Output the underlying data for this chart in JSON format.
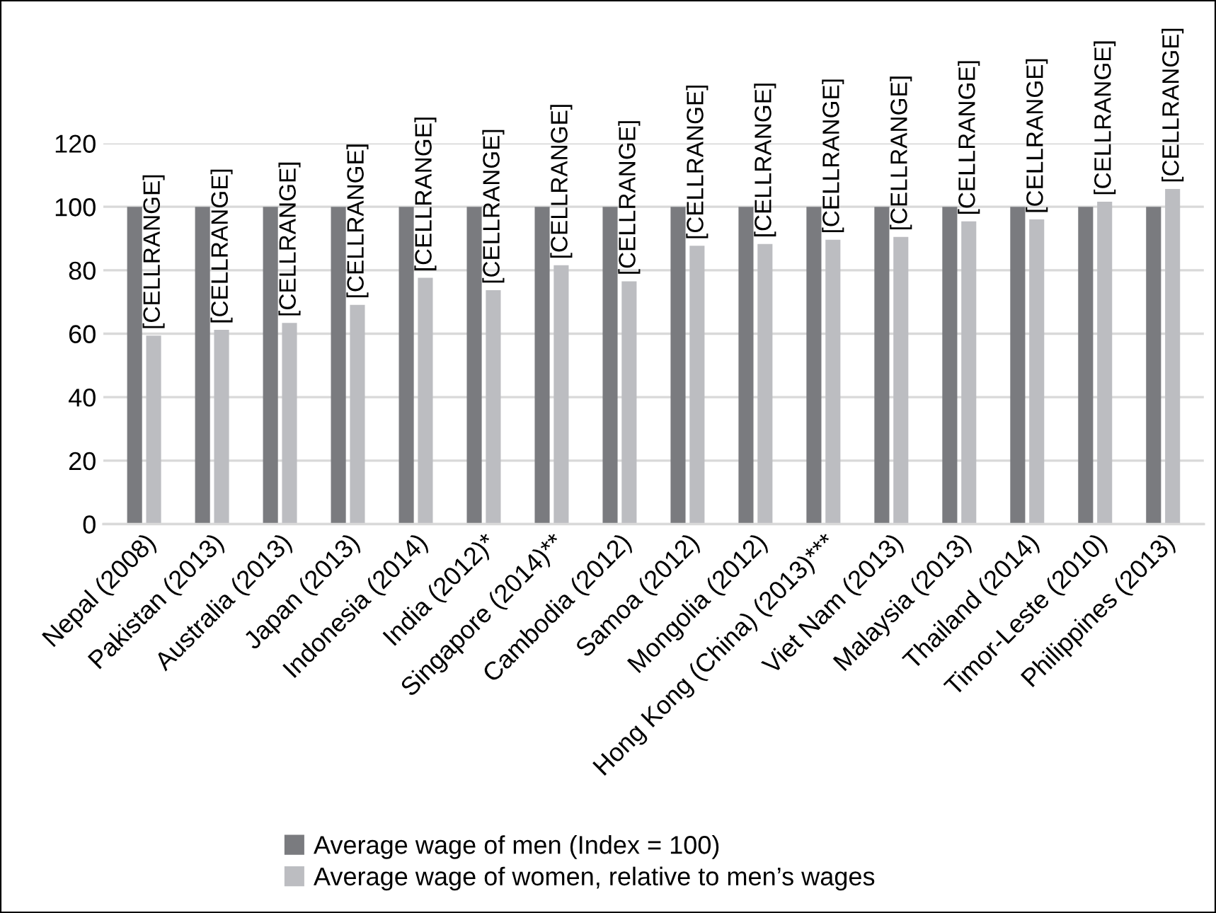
{
  "chart_data": {
    "type": "bar",
    "categories": [
      "Nepal (2008)",
      "Pakistan (2013)",
      "Australia (2013)",
      "Japan (2013)",
      "Indonesia (2014)",
      "India (2012)*",
      "Singapore (2014)**",
      "Cambodia (2012)",
      "Samoa (2012)",
      "Mongolia (2012)",
      "Hong Kong (China) (2013)***",
      "Viet Nam (2013)",
      "Malaysia (2013)",
      "Thailand (2014)",
      "Timor-Leste (2010)",
      "Philippines (2013)"
    ],
    "series": [
      {
        "name": "Average wage of men (Index = 100)",
        "color": "#7a7b7f",
        "values": [
          100,
          100,
          100,
          100,
          100,
          100,
          100,
          100,
          100,
          100,
          100,
          100,
          100,
          100,
          100,
          100
        ]
      },
      {
        "name": "Average wage of women, relative to men’s wages",
        "color": "#bcbdc1",
        "values": [
          59.4,
          61.2,
          63.4,
          69.1,
          77.6,
          73.7,
          81.6,
          76.5,
          87.7,
          88.3,
          89.6,
          90.5,
          95.4,
          96.0,
          101.6,
          105.6
        ],
        "value_labels": [
          "[CELLRANGE]",
          "[CELLRANGE]",
          "[CELLRANGE]",
          "[CELLRANGE]",
          "[CELLRANGE]",
          "[CELLRANGE]",
          "[CELLRANGE]",
          "[CELLRANGE]",
          "[CELLRANGE]",
          "[CELLRANGE]",
          "[CELLRANGE]",
          "[CELLRANGE]",
          "[CELLRANGE]",
          "[CELLRANGE]",
          "[CELLRANGE]",
          "[CELLRANGE]"
        ]
      }
    ],
    "ylim": [
      0,
      120
    ],
    "yticks": [
      0,
      20,
      40,
      60,
      80,
      100,
      120
    ],
    "grid": "y",
    "legend": "bottom"
  }
}
